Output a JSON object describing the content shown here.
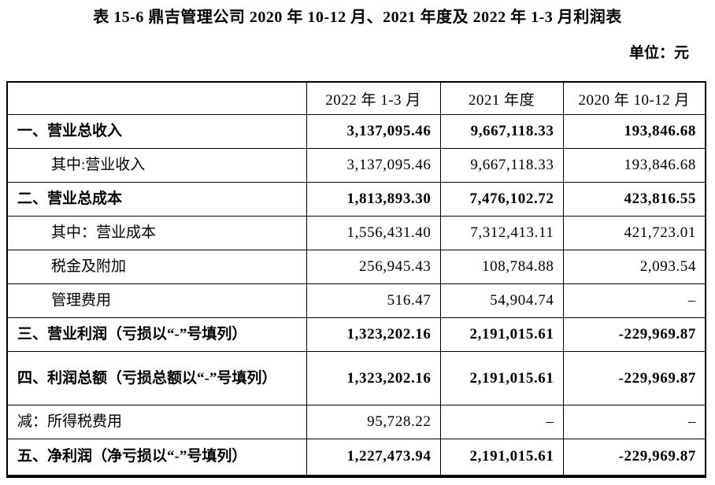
{
  "title": "表 15-6 鼎吉管理公司 2020 年 10-12 月、2021 年度及 2022 年 1-3 月利润表",
  "unit_label": "单位：元",
  "colors": {
    "text": "#000000",
    "border": "#000000",
    "background": "#ffffff"
  },
  "table": {
    "columns": [
      "",
      "2022 年 1-3 月",
      "2021 年度",
      "2020 年 10-12 月"
    ],
    "rows": [
      {
        "label": "一、营业总收入",
        "bold": true,
        "indent": false,
        "values": [
          "3,137,095.46",
          "9,667,118.33",
          "193,846.68"
        ]
      },
      {
        "label": "其中:营业收入",
        "bold": false,
        "indent": true,
        "values": [
          "3,137,095.46",
          "9,667,118.33",
          "193,846.68"
        ]
      },
      {
        "label": "二、营业总成本",
        "bold": true,
        "indent": false,
        "values": [
          "1,813,893.30",
          "7,476,102.72",
          "423,816.55"
        ]
      },
      {
        "label": "其中：营业成本",
        "bold": false,
        "indent": true,
        "values": [
          "1,556,431.40",
          "7,312,413.11",
          "421,723.01"
        ]
      },
      {
        "label": "税金及附加",
        "bold": false,
        "indent": true,
        "values": [
          "256,945.43",
          "108,784.88",
          "2,093.54"
        ]
      },
      {
        "label": "管理费用",
        "bold": false,
        "indent": true,
        "values": [
          "516.47",
          "54,904.74",
          "–"
        ]
      },
      {
        "label": "三、营业利润（亏损以“-”号填列）",
        "bold": true,
        "indent": false,
        "values": [
          "1,323,202.16",
          "2,191,015.61",
          "-229,969.87"
        ]
      },
      {
        "label": "四、利润总额（亏损总额以“-”号填列）",
        "bold": true,
        "indent": false,
        "values": [
          "1,323,202.16",
          "2,191,015.61",
          "-229,969.87"
        ]
      },
      {
        "label": "减：所得税费用",
        "bold": false,
        "indent": false,
        "values": [
          "95,728.22",
          "–",
          "–"
        ]
      },
      {
        "label": "五、净利润（净亏损以“-”号填列）",
        "bold": true,
        "indent": false,
        "values": [
          "1,227,473.94",
          "2,191,015.61",
          "-229,969.87"
        ]
      }
    ]
  }
}
